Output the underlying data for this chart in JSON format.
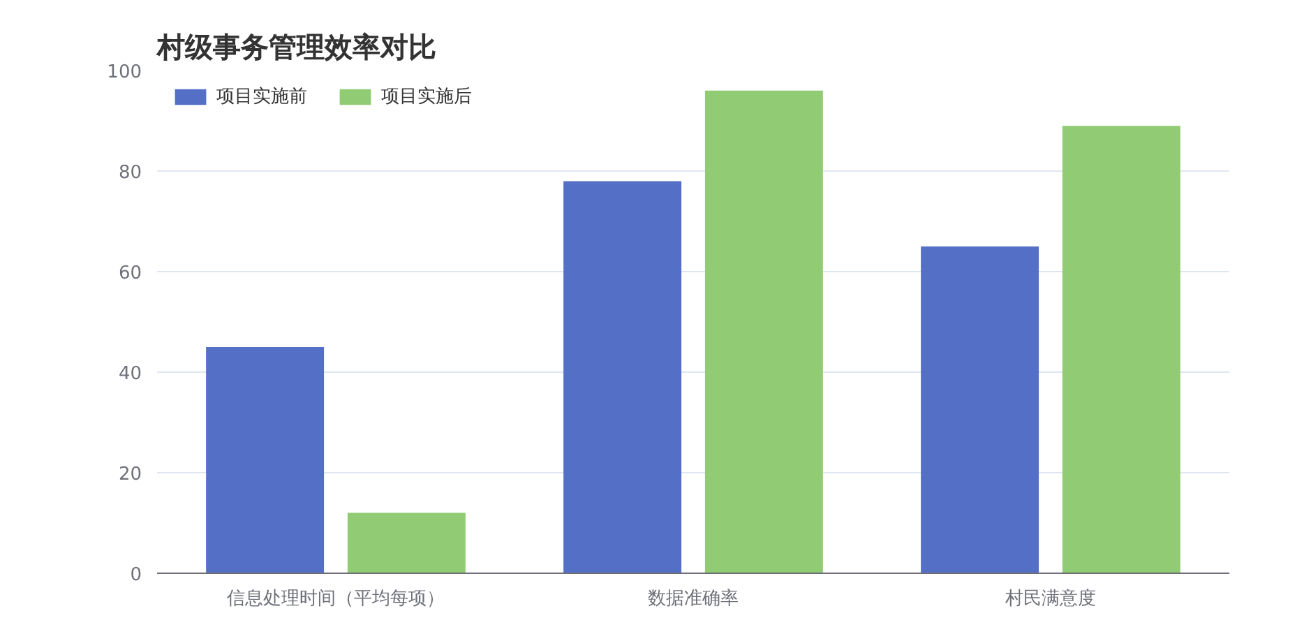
{
  "chart_data": {
    "type": "bar",
    "title": "村级事务管理效率对比",
    "categories": [
      "信息处理时间（平均每项）",
      "数据准确率",
      "村民满意度"
    ],
    "series": [
      {
        "name": "项目实施前",
        "color": "#5470c6",
        "values": [
          45,
          78,
          65
        ]
      },
      {
        "name": "项目实施后",
        "color": "#91cc75",
        "values": [
          12,
          96,
          89
        ]
      }
    ],
    "ylim": [
      0,
      100
    ],
    "yticks": [
      0,
      20,
      40,
      60,
      80,
      100
    ],
    "grid": "y",
    "legend": "top left"
  }
}
